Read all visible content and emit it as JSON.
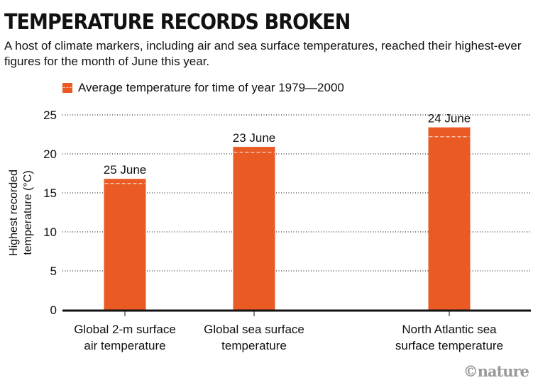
{
  "title": "TEMPERATURE RECORDS BROKEN",
  "subtitle": "A host of climate markers, including air and sea surface temperatures, reached their highest-ever figures for the month of June this year.",
  "logo": "©nature",
  "chart_data": {
    "type": "bar",
    "categories": [
      [
        "Global 2-m surface",
        "air temperature"
      ],
      [
        "Global sea surface",
        "temperature"
      ],
      [
        "North Atlantic sea",
        "surface temperature"
      ]
    ],
    "values": [
      16.8,
      20.9,
      23.4
    ],
    "averages": [
      16.2,
      20.2,
      22.2
    ],
    "data_labels": [
      "25 June",
      "23 June",
      "24 June"
    ],
    "legend": "Average temperature for time of year 1979—2000",
    "ylabel": [
      "Highest recorded",
      "temperature (°C)"
    ],
    "yticks": [
      "0",
      "5",
      "10",
      "15",
      "20",
      "25"
    ],
    "ylim": [
      0,
      25
    ],
    "grid": true,
    "colors": {
      "bar": "#e95a25",
      "avg": "#f6c4ae"
    }
  }
}
